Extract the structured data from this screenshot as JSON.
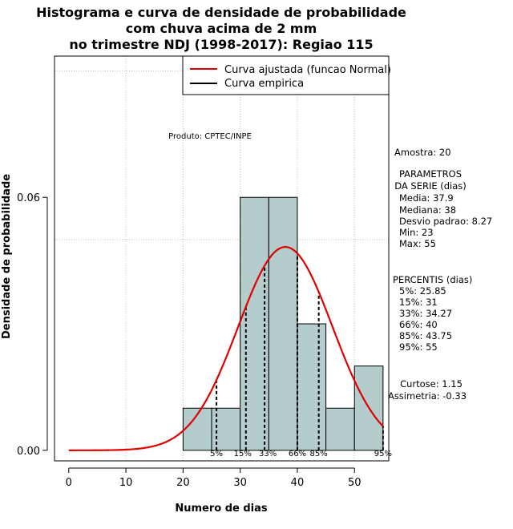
{
  "chart_data": {
    "type": "bar",
    "title_lines": [
      "Histograma e curva de densidade de probabilidade",
      "com chuva acima de 2 mm",
      "no trimestre NDJ (1998-2017): Regiao 115"
    ],
    "xlabel": "Numero de dias",
    "ylabel": "Densidade de probabilidade",
    "xlim": [
      -2.5,
      56
    ],
    "ylim": [
      -0.0025,
      0.0935
    ],
    "x_ticks": [
      0,
      10,
      20,
      30,
      40,
      50
    ],
    "y_ticks": [
      0.0,
      0.06
    ],
    "y_tick_labels": [
      "0.00",
      "0.06"
    ],
    "grid": true,
    "histogram": [
      {
        "from": 20,
        "to": 25,
        "density": 0.01
      },
      {
        "from": 25,
        "to": 30,
        "density": 0.01
      },
      {
        "from": 30,
        "to": 35,
        "density": 0.06
      },
      {
        "from": 35,
        "to": 40,
        "density": 0.06
      },
      {
        "from": 40,
        "to": 45,
        "density": 0.03
      },
      {
        "from": 45,
        "to": 50,
        "density": 0.01
      },
      {
        "from": 50,
        "to": 55,
        "density": 0.02
      }
    ],
    "normal_fit": {
      "mean": 37.9,
      "sd": 8.27,
      "x_from": 0,
      "x_to": 55
    },
    "percentile_lines": [
      {
        "label": "5%",
        "x": 25.85
      },
      {
        "label": "15%",
        "x": 31
      },
      {
        "label": "33%",
        "x": 34.27
      },
      {
        "label": "66%",
        "x": 40
      },
      {
        "label": "85%",
        "x": 43.75
      },
      {
        "label": "95%",
        "x": 55
      }
    ],
    "legend": {
      "placement": "top-right",
      "entries": [
        {
          "label": "Curva ajustada (funcao Normal)",
          "color": "#e00000"
        },
        {
          "label": "Curva empirica",
          "color": "#000000"
        }
      ]
    },
    "annotation": "Produto: CPTEC/INPE"
  },
  "side_panel": {
    "sample": "Amostra: 20",
    "params_title_1": "PARAMETROS",
    "params_title_2": "DA SERIE (dias)",
    "media": "Media: 37.9",
    "mediana": "Mediana: 38",
    "desvio": "Desvio padrao: 8.27",
    "min": "Min: 23",
    "max": "Max: 55",
    "percentis_title": "PERCENTIS (dias)",
    "p5": "5%: 25.85",
    "p15": "15%: 31",
    "p33": "33%: 34.27",
    "p66": "66%: 40",
    "p85": "85%: 43.75",
    "p95": "95%: 55",
    "curtose": "Curtose: 1.15",
    "assimetria": "Assimetria: -0.33"
  },
  "colors": {
    "bar_fill": "#b5cccc",
    "curve": "#e00000",
    "grid": "#bbbbbb"
  }
}
